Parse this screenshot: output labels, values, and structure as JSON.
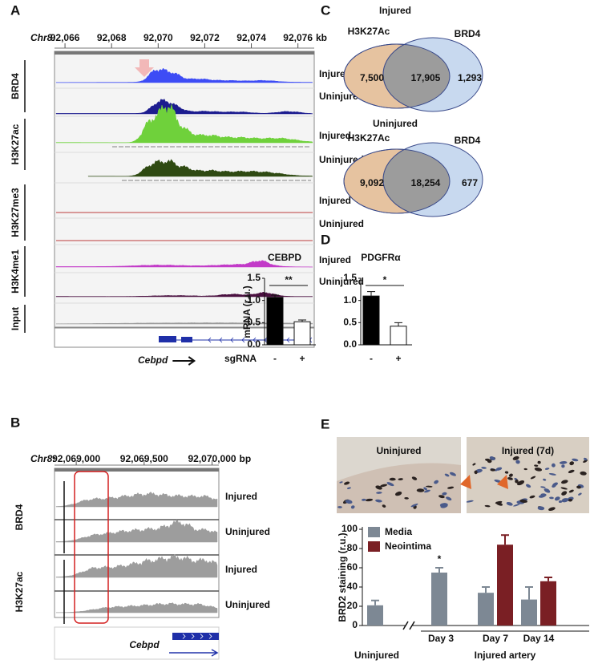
{
  "panel_a": {
    "label": "A",
    "chrom": "Chr8:",
    "unit": "kb",
    "xlim": [
      92065.55,
      92076.7
    ],
    "ticks": [
      {
        "value": 92066,
        "label": "92,066"
      },
      {
        "value": 92068,
        "label": "92,068"
      },
      {
        "value": 92070,
        "label": "92,070"
      },
      {
        "value": 92072,
        "label": "92,072"
      },
      {
        "value": 92074,
        "label": "92,074"
      },
      {
        "value": 92076,
        "label": "92,076"
      }
    ],
    "groups": [
      {
        "name": "BRD4",
        "tracks": [
          "Injured",
          "Uninjured"
        ]
      },
      {
        "name": "H3K27ac",
        "tracks": [
          "Injured",
          "Uninjured"
        ]
      },
      {
        "name": "H3K27me3",
        "tracks": [
          "Injured",
          "Uninjured"
        ]
      },
      {
        "name": "H3K4me1",
        "tracks": [
          "Injured",
          "Uninjured"
        ]
      },
      {
        "name": "Input",
        "tracks": []
      }
    ],
    "gene": "Cebpd"
  },
  "panel_b": {
    "label": "B",
    "chrom": "Chr8:",
    "unit": "bp",
    "xlim": [
      92068840,
      92070050
    ],
    "ticks": [
      {
        "value": 92069000,
        "label": "92,069,000"
      },
      {
        "value": 92069500,
        "label": "92,069,500"
      },
      {
        "value": 92070000,
        "label": "92,070,000"
      }
    ],
    "groups": [
      {
        "name": "BRD4",
        "tracks": [
          "Injured",
          "Uninjured"
        ]
      },
      {
        "name": "H3K27ac",
        "tracks": [
          "Injured",
          "Uninjured"
        ]
      }
    ],
    "gene": "Cebpd"
  },
  "panel_c": {
    "label": "C",
    "venns": [
      {
        "title": "Injured",
        "left": "H3K27Ac",
        "right": "BRD4",
        "counts": [
          "7,500",
          "17,905",
          "1,293"
        ]
      },
      {
        "title": "Uninjured",
        "left": "H3K27Ac",
        "right": "BRD4",
        "counts": [
          "9,092",
          "18,254",
          "677"
        ]
      }
    ]
  },
  "panel_d": {
    "label": "D"
  },
  "panel_e": {
    "label": "E",
    "images": [
      "Uninjured",
      "Injured (7d)"
    ]
  },
  "chart_data": [
    {
      "type": "bar",
      "title": "CEBPD",
      "y_label": "mRNA (r.u.)",
      "x_label": "sgRNA",
      "categories": [
        "-",
        "+"
      ],
      "values": [
        1.07,
        0.52
      ],
      "errors": [
        0.05,
        0.04
      ],
      "colors": [
        "#000000",
        "#ffffff"
      ],
      "ylim": [
        0,
        1.5
      ],
      "yticks": [
        {
          "value": 0,
          "label": "0.0"
        },
        {
          "value": 0.5,
          "label": "0.5"
        },
        {
          "value": 1,
          "label": "1.0"
        },
        {
          "value": 1.5,
          "label": "1.5"
        }
      ],
      "significance": "**"
    },
    {
      "type": "bar",
      "title": "PDGFRα",
      "categories": [
        "-",
        "+"
      ],
      "values": [
        1.1,
        0.42
      ],
      "errors": [
        0.1,
        0.08
      ],
      "colors": [
        "#000000",
        "#ffffff"
      ],
      "ylim": [
        0,
        1.5
      ],
      "yticks": [
        {
          "value": 0,
          "label": "0.0"
        },
        {
          "value": 0.5,
          "label": "0.5"
        },
        {
          "value": 1,
          "label": "1.0"
        },
        {
          "value": 1.5,
          "label": "1.5"
        }
      ],
      "significance": "*"
    },
    {
      "type": "grouped_bar",
      "y_label": "BRD2 staining (r.u.)",
      "categories": [
        null,
        "Day 3",
        "Day 7",
        "Day 14"
      ],
      "groups": [
        "Uninjured",
        "Injured artery"
      ],
      "series": [
        {
          "name": "Media",
          "color": "#7d8894",
          "values": [
            21,
            55,
            34,
            27
          ],
          "errors": [
            5,
            5,
            6,
            13
          ]
        },
        {
          "name": "Neointima",
          "color": "#7a1f24",
          "values": [
            null,
            null,
            84,
            46
          ],
          "errors": [
            null,
            null,
            10,
            4
          ]
        }
      ],
      "ylim": [
        0,
        100
      ],
      "yticks": [
        0,
        20,
        40,
        60,
        80,
        100
      ],
      "significance": "*"
    }
  ]
}
